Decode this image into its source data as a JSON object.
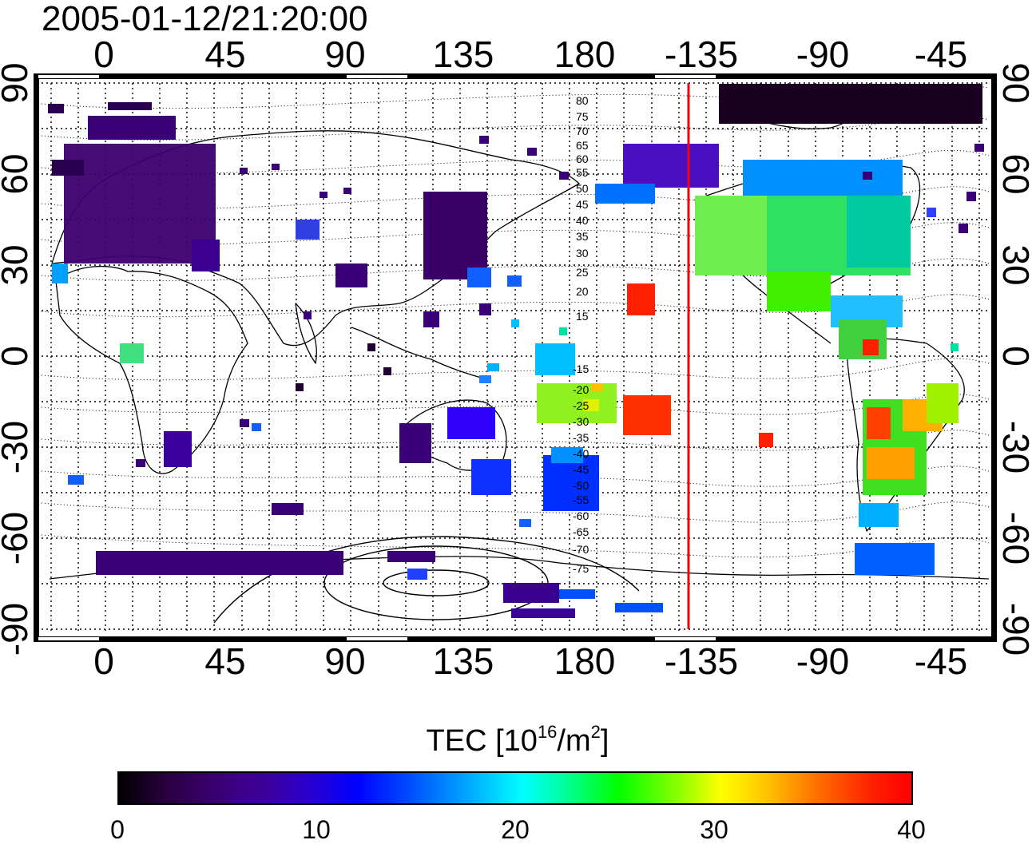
{
  "title": "2005-01-12/21:20:00",
  "map": {
    "top_lon_ticks": [
      "0",
      "45",
      "90",
      "135",
      "180",
      "-135",
      "-90",
      "-45"
    ],
    "bottom_lon_ticks": [
      "0",
      "45",
      "90",
      "135",
      "180",
      "-135",
      "-90",
      "-45"
    ],
    "left_lat_ticks": [
      "90",
      "60",
      "30",
      "0",
      "-30",
      "-60",
      "-90"
    ],
    "right_lat_ticks": [
      "90",
      "60",
      "30",
      "0",
      "-30",
      "-60",
      "-90"
    ],
    "contour_labels_north": [
      "80",
      "75",
      "70",
      "65",
      "60",
      "55",
      "50",
      "45",
      "40",
      "35",
      "30",
      "25",
      "20",
      "15"
    ],
    "contour_labels_south": [
      "-15",
      "-20",
      "-25",
      "-30",
      "-35",
      "-40",
      "-45",
      "-50",
      "-55",
      "-60",
      "-65",
      "-70",
      "-75"
    ],
    "terminator_color": "#ff0000",
    "colors": {
      "background": "#ffffff",
      "frame": "#000000",
      "land_outline": "#000000"
    }
  },
  "colorbar": {
    "label_prefix": "TEC  [10",
    "label_exp": "16",
    "label_mid": "/m",
    "label_exp2": "2",
    "label_suffix": "]",
    "ticks": [
      "0",
      "10",
      "20",
      "30",
      "40"
    ],
    "colors": [
      "#000000",
      "#3c00a0",
      "#0000ff",
      "#00ffff",
      "#00ff00",
      "#ffff00",
      "#ff0000"
    ]
  }
}
